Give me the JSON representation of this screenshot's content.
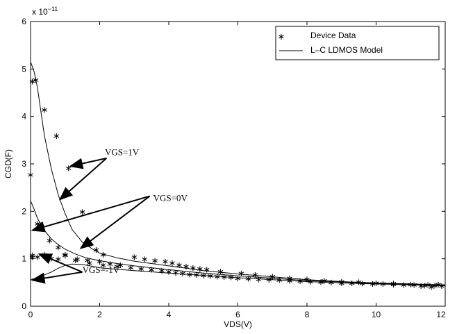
{
  "chart_data": {
    "type": "scatter",
    "xlabel": "VDS(V)",
    "ylabel": "CGD(F)",
    "y_scale_exponent": "x 10^-11",
    "y_exponent_base": "x 10",
    "y_exponent_power": "−11",
    "xlim": [
      0,
      12
    ],
    "ylim": [
      0,
      6
    ],
    "x_ticks": [
      0,
      2,
      4,
      6,
      8,
      10,
      12
    ],
    "y_ticks": [
      0,
      1,
      2,
      3,
      4,
      5,
      6
    ],
    "x_tick_labels": [
      "0",
      "2",
      "4",
      "6",
      "8",
      "10",
      "12"
    ],
    "y_tick_labels": [
      "0",
      "1",
      "2",
      "3",
      "4",
      "5",
      "6"
    ],
    "grid": false,
    "legend": {
      "placement": "top-right",
      "entries": [
        {
          "label": "Device Data",
          "marker": "*"
        },
        {
          "label": "L–C LDMOS Model",
          "marker": "line"
        }
      ]
    },
    "annotations": [
      {
        "text": "VGS=1V"
      },
      {
        "text": "VGS=0V"
      },
      {
        "text": "VGS=-1V"
      }
    ],
    "model_series": [
      {
        "curve": "VGS=1V",
        "x": [
          0,
          0.1,
          0.2,
          0.3,
          0.4,
          0.6,
          0.8,
          1.0,
          1.2,
          1.5,
          1.8,
          2.0,
          2.5,
          3,
          4,
          5,
          6,
          7,
          8,
          9,
          10,
          11,
          12
        ],
        "y": [
          5.15,
          4.95,
          4.6,
          4.1,
          3.6,
          2.9,
          2.35,
          1.95,
          1.62,
          1.35,
          1.2,
          1.12,
          1.02,
          0.95,
          0.85,
          0.75,
          0.68,
          0.62,
          0.56,
          0.52,
          0.49,
          0.47,
          0.45
        ]
      },
      {
        "curve": "VGS=0V",
        "x": [
          0,
          0.1,
          0.2,
          0.4,
          0.6,
          0.8,
          1.0,
          1.3,
          1.6,
          2.0,
          2.5,
          3,
          4,
          5,
          6,
          7,
          8,
          9,
          10,
          11,
          12
        ],
        "y": [
          2.22,
          2.05,
          1.85,
          1.6,
          1.42,
          1.3,
          1.2,
          1.1,
          1.02,
          0.96,
          0.9,
          0.85,
          0.77,
          0.7,
          0.64,
          0.59,
          0.54,
          0.51,
          0.48,
          0.46,
          0.44
        ]
      },
      {
        "curve": "VGS=-1V",
        "x": [
          0,
          0.2,
          0.4,
          0.6,
          0.8,
          1.0,
          1.2,
          1.5,
          1.8,
          2.0,
          2.5,
          3,
          4,
          5,
          6,
          7,
          8,
          9,
          10,
          11,
          12
        ],
        "y": [
          0.56,
          0.6,
          0.66,
          0.72,
          0.8,
          0.86,
          0.89,
          0.88,
          0.84,
          0.81,
          0.78,
          0.75,
          0.7,
          0.65,
          0.6,
          0.56,
          0.52,
          0.49,
          0.47,
          0.45,
          0.43
        ]
      }
    ],
    "device_data": {
      "x": [
        0.0,
        0.05,
        0.15,
        0.4,
        0.75,
        1.1,
        1.5,
        1.7,
        1.9,
        2.1,
        0.05,
        0.2,
        0.3,
        0.55,
        0.8,
        1.0,
        1.35,
        1.65,
        2.0,
        2.3,
        2.6,
        0.05,
        0.2,
        0.4,
        0.6,
        0.8,
        1.0,
        1.3,
        1.7,
        2.1,
        2.5,
        2.9,
        3.2,
        3.5,
        3.8,
        4.0,
        4.2,
        4.4,
        4.6,
        4.8,
        5.0,
        5.2,
        5.4,
        5.6,
        5.8,
        6.0,
        6.3,
        6.6,
        6.9,
        7.2,
        7.5,
        7.8,
        8.1,
        8.4,
        8.7,
        9.0,
        9.3,
        9.6,
        9.9,
        10.2,
        10.5,
        10.8,
        11.1,
        11.4,
        11.7,
        11.9,
        3.0,
        3.3,
        3.6,
        3.9,
        4.1,
        4.3,
        4.5,
        4.7,
        4.9,
        5.1,
        5.5,
        6.1,
        6.5,
        7.0,
        7.5,
        8.0,
        8.5,
        9.0,
        9.5,
        10.0,
        10.5,
        11.0,
        11.5,
        11.8,
        11.6,
        11.3
      ],
      "y": [
        2.78,
        4.75,
        4.78,
        4.15,
        3.6,
        2.92,
        2.0,
        1.32,
        1.2,
        1.1,
        1.05,
        1.75,
        1.72,
        1.4,
        1.25,
        1.1,
        1.0,
        0.98,
        0.95,
        0.9,
        0.88,
        1.08,
        1.05,
        1.1,
        1.02,
        1.0,
        1.08,
        0.98,
        0.92,
        0.88,
        0.85,
        0.83,
        0.8,
        0.78,
        0.76,
        0.74,
        0.72,
        0.7,
        0.68,
        0.67,
        0.66,
        0.65,
        0.64,
        0.63,
        0.62,
        0.6,
        0.59,
        0.58,
        0.57,
        0.56,
        0.55,
        0.54,
        0.53,
        0.52,
        0.51,
        0.5,
        0.5,
        0.49,
        0.48,
        0.48,
        0.47,
        0.46,
        0.46,
        0.45,
        0.45,
        0.44,
        1.05,
        1.0,
        0.97,
        0.95,
        0.92,
        0.88,
        0.85,
        0.82,
        0.8,
        0.78,
        0.74,
        0.7,
        0.67,
        0.64,
        0.6,
        0.58,
        0.55,
        0.53,
        0.52,
        0.5,
        0.49,
        0.47,
        0.46,
        0.47,
        0.42,
        0.44
      ]
    }
  }
}
